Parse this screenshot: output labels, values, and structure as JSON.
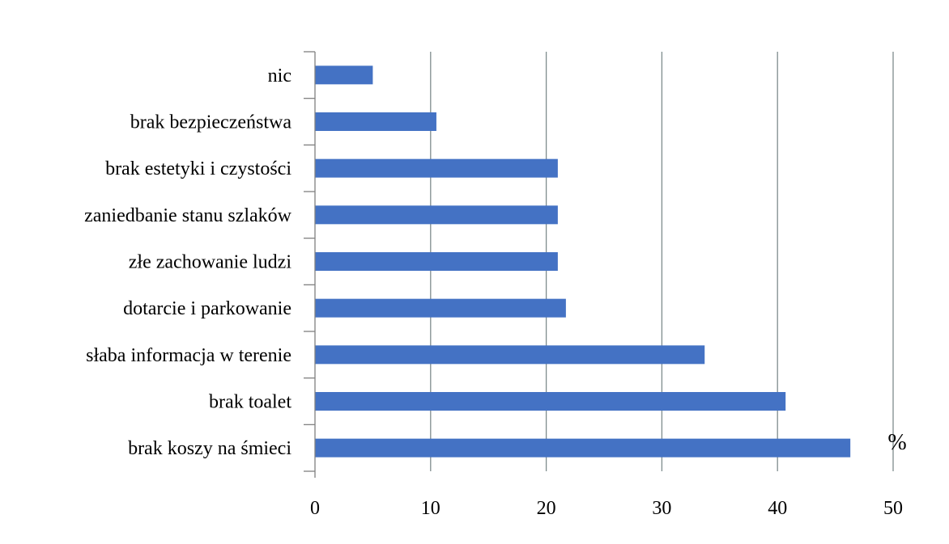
{
  "chart_data": {
    "type": "bar",
    "orientation": "horizontal",
    "categories": [
      "nic",
      "brak bezpieczeństwa",
      "brak estetyki i czystości",
      "zaniedbanie stanu szlaków",
      "złe zachowanie ludzi",
      "dotarcie i parkowanie",
      "słaba informacja w terenie",
      "brak toalet",
      "brak koszy na śmieci"
    ],
    "values": [
      5,
      10.5,
      21,
      21,
      21,
      21.7,
      33.7,
      40.7,
      46.3
    ],
    "xlim": [
      0,
      50
    ],
    "x_ticks": [
      0,
      10,
      20,
      30,
      40,
      50
    ],
    "unit_label": "%",
    "grid": true,
    "bar_color": "#4472c4",
    "legend": "none"
  }
}
